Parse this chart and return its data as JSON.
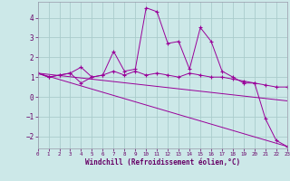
{
  "xlabel": "Windchill (Refroidissement éolien,°C)",
  "background_color": "#cce8e8",
  "grid_color": "#aacccc",
  "line_color": "#990099",
  "text_color": "#660066",
  "xlim": [
    0,
    23
  ],
  "ylim": [
    -2.6,
    4.8
  ],
  "xticks": [
    0,
    1,
    2,
    3,
    4,
    5,
    6,
    7,
    8,
    9,
    10,
    11,
    12,
    13,
    14,
    15,
    16,
    17,
    18,
    19,
    20,
    21,
    22,
    23
  ],
  "yticks": [
    -2,
    -1,
    0,
    1,
    2,
    3,
    4
  ],
  "series1_x": [
    0,
    1,
    2,
    3,
    4,
    5,
    6,
    7,
    8,
    9,
    10,
    11,
    12,
    13,
    14,
    15,
    16,
    17,
    18,
    19,
    20,
    21,
    22,
    23
  ],
  "series1_y": [
    1.2,
    1.0,
    1.1,
    1.2,
    1.5,
    1.0,
    1.1,
    2.3,
    1.3,
    1.4,
    4.5,
    4.3,
    2.7,
    2.8,
    1.4,
    3.5,
    2.8,
    1.3,
    1.0,
    0.7,
    0.7,
    -1.1,
    -2.2,
    -2.5
  ],
  "series2_x": [
    0,
    1,
    2,
    3,
    4,
    5,
    6,
    7,
    8,
    9,
    10,
    11,
    12,
    13,
    14,
    15,
    16,
    17,
    18,
    19,
    20,
    21,
    22,
    23
  ],
  "series2_y": [
    1.2,
    1.0,
    1.1,
    1.2,
    0.7,
    1.0,
    1.1,
    1.3,
    1.1,
    1.3,
    1.1,
    1.2,
    1.1,
    1.0,
    1.2,
    1.1,
    1.0,
    1.0,
    0.9,
    0.8,
    0.7,
    0.6,
    0.5,
    0.5
  ],
  "series3_x": [
    0,
    23
  ],
  "series3_y": [
    1.2,
    -0.2
  ],
  "series4_x": [
    0,
    23
  ],
  "series4_y": [
    1.2,
    -2.5
  ]
}
